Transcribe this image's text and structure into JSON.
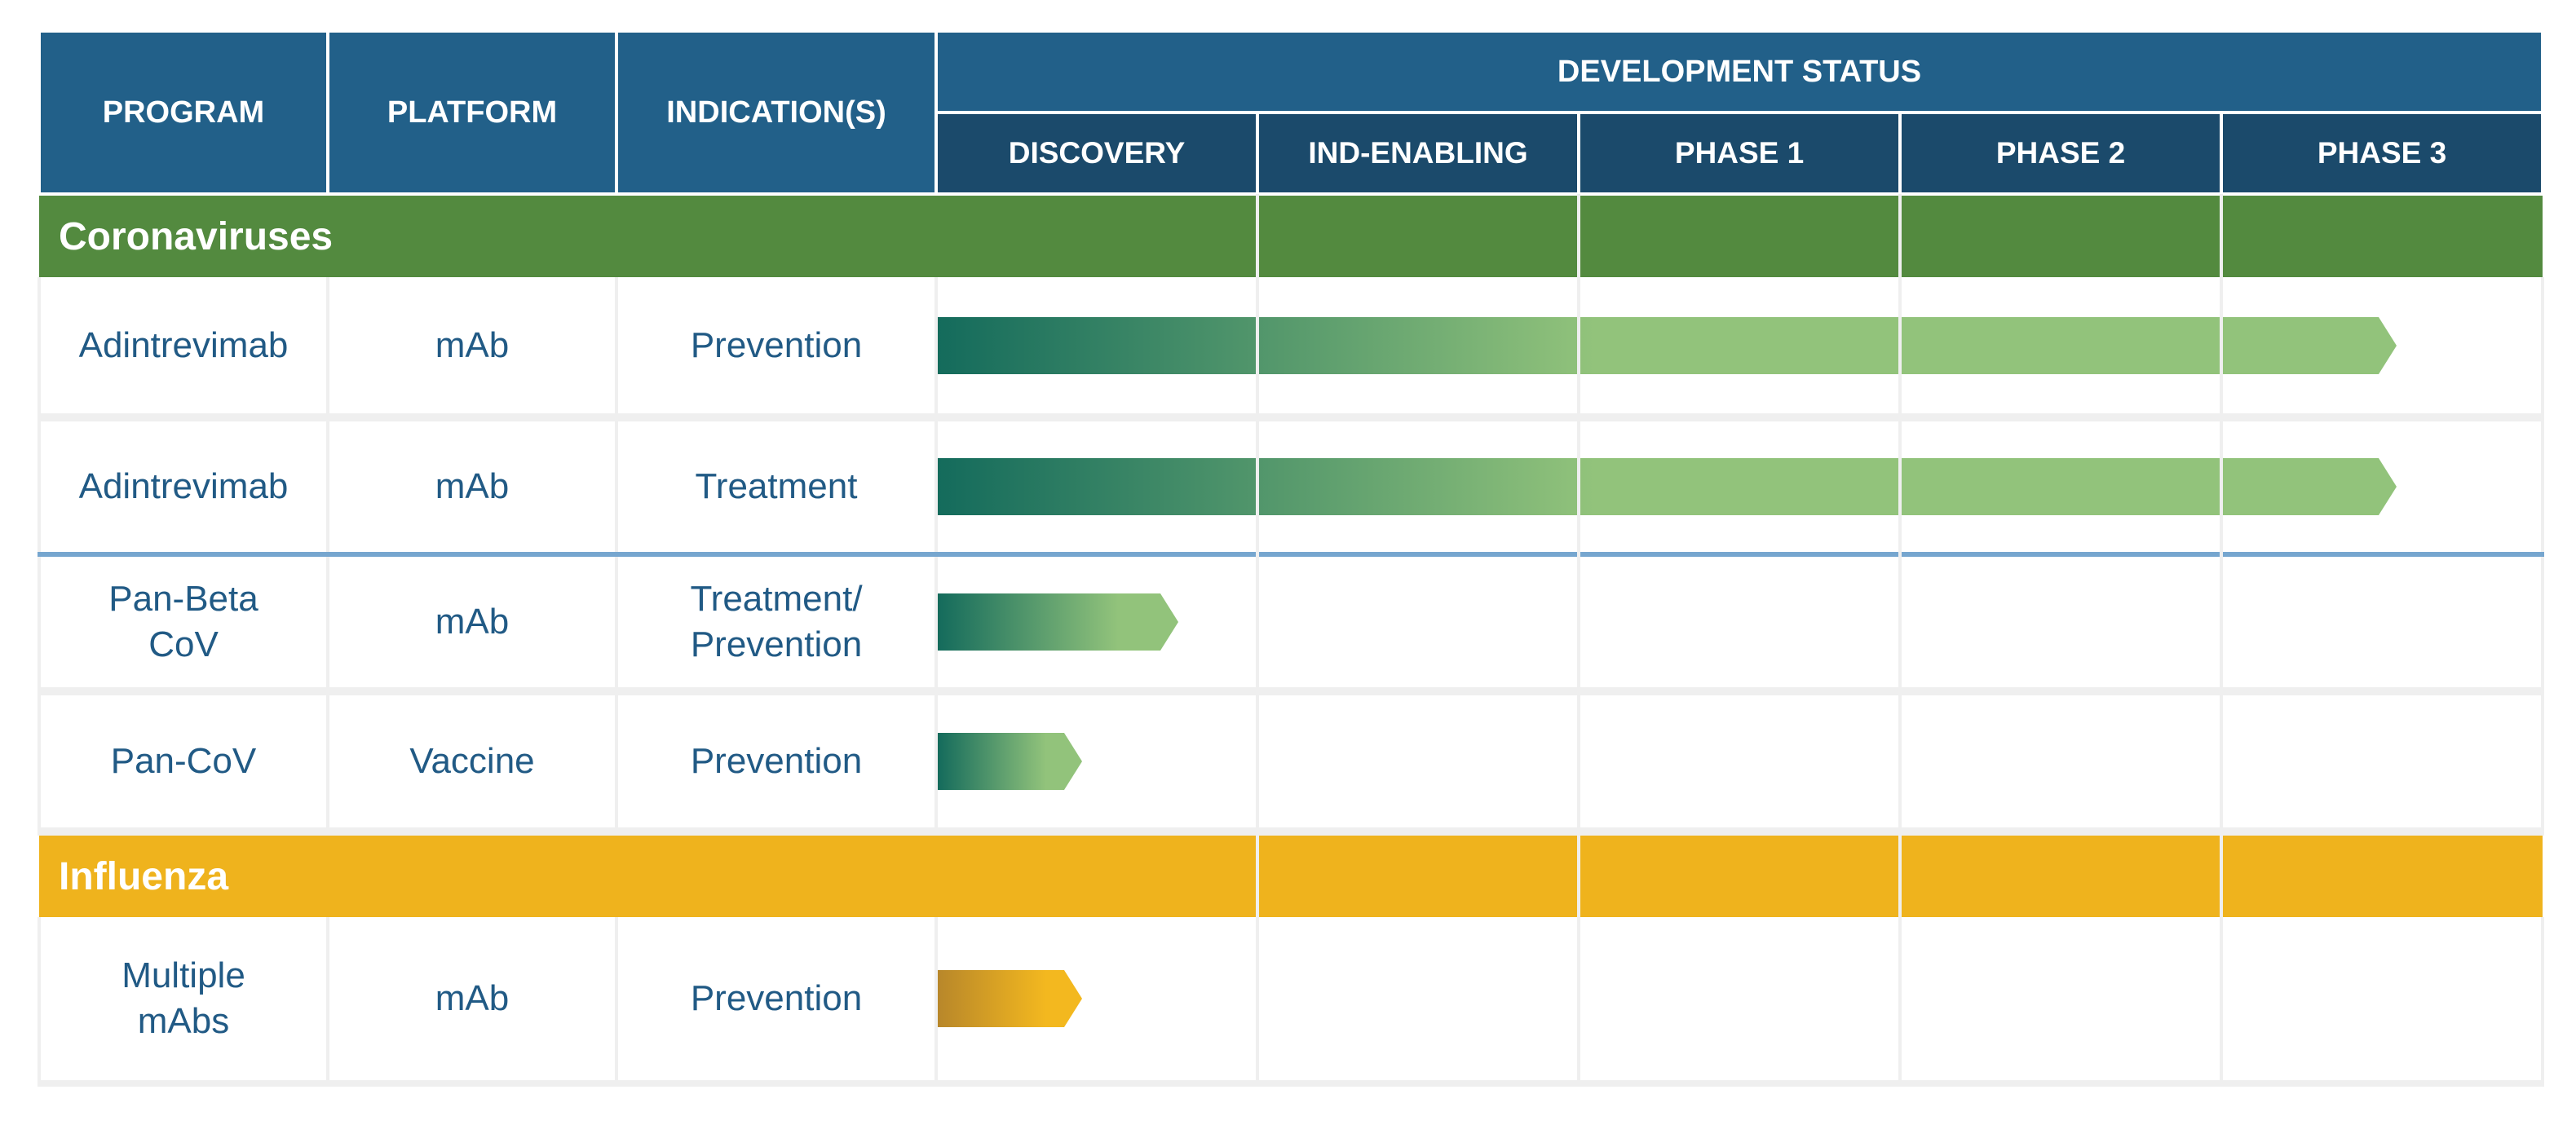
{
  "header": {
    "program": "PROGRAM",
    "platform": "PLATFORM",
    "indications": "INDICATION(S)",
    "development_status": "DEVELOPMENT STATUS"
  },
  "stages": [
    "DISCOVERY",
    "IND-ENABLING",
    "PHASE 1",
    "PHASE 2",
    "PHASE 3"
  ],
  "sections": [
    {
      "name": "Coronaviruses",
      "color": "#538a3f",
      "rows": [
        {
          "program": "Adintrevimab",
          "platform": "mAb",
          "indication": "Prevention",
          "progress": 0.91
        },
        {
          "program": "Adintrevimab",
          "platform": "mAb",
          "indication": "Treatment",
          "progress": 0.91
        },
        {
          "program": "Pan-Beta\nCoV",
          "platform": "mAb",
          "indication": "Treatment/\nPrevention",
          "progress": 0.15
        },
        {
          "program": "Pan-CoV",
          "platform": "Vaccine",
          "indication": "Prevention",
          "progress": 0.09
        }
      ]
    },
    {
      "name": "Influenza",
      "color": "#efb31d",
      "rows": [
        {
          "program": "Multiple\nmAbs",
          "platform": "mAb",
          "indication": "Prevention",
          "progress": 0.09
        }
      ]
    }
  ],
  "colors": {
    "header": "#226089",
    "header_sub": "#1b4a6b",
    "text": "#215a85",
    "green_start": "#146b5c",
    "green_end": "#92c37b",
    "gold_start": "#b8872a",
    "gold_end": "#f3b81f"
  },
  "chart_data": {
    "type": "table",
    "columns": [
      "PROGRAM",
      "PLATFORM",
      "INDICATION(S)",
      "DISCOVERY",
      "IND-ENABLING",
      "PHASE 1",
      "PHASE 2",
      "PHASE 3"
    ],
    "groups": [
      "Coronaviruses",
      "Influenza"
    ],
    "rows": [
      {
        "group": "Coronaviruses",
        "program": "Adintrevimab",
        "platform": "mAb",
        "indication": "Prevention",
        "progress": 0.91
      },
      {
        "group": "Coronaviruses",
        "program": "Adintrevimab",
        "platform": "mAb",
        "indication": "Treatment",
        "progress": 0.91
      },
      {
        "group": "Coronaviruses",
        "program": "Pan-Beta CoV",
        "platform": "mAb",
        "indication": "Treatment/ Prevention",
        "progress": 0.15
      },
      {
        "group": "Coronaviruses",
        "program": "Pan-CoV",
        "platform": "Vaccine",
        "indication": "Prevention",
        "progress": 0.09
      },
      {
        "group": "Influenza",
        "program": "Multiple mAbs",
        "platform": "mAb",
        "indication": "Prevention",
        "progress": 0.09
      }
    ]
  }
}
